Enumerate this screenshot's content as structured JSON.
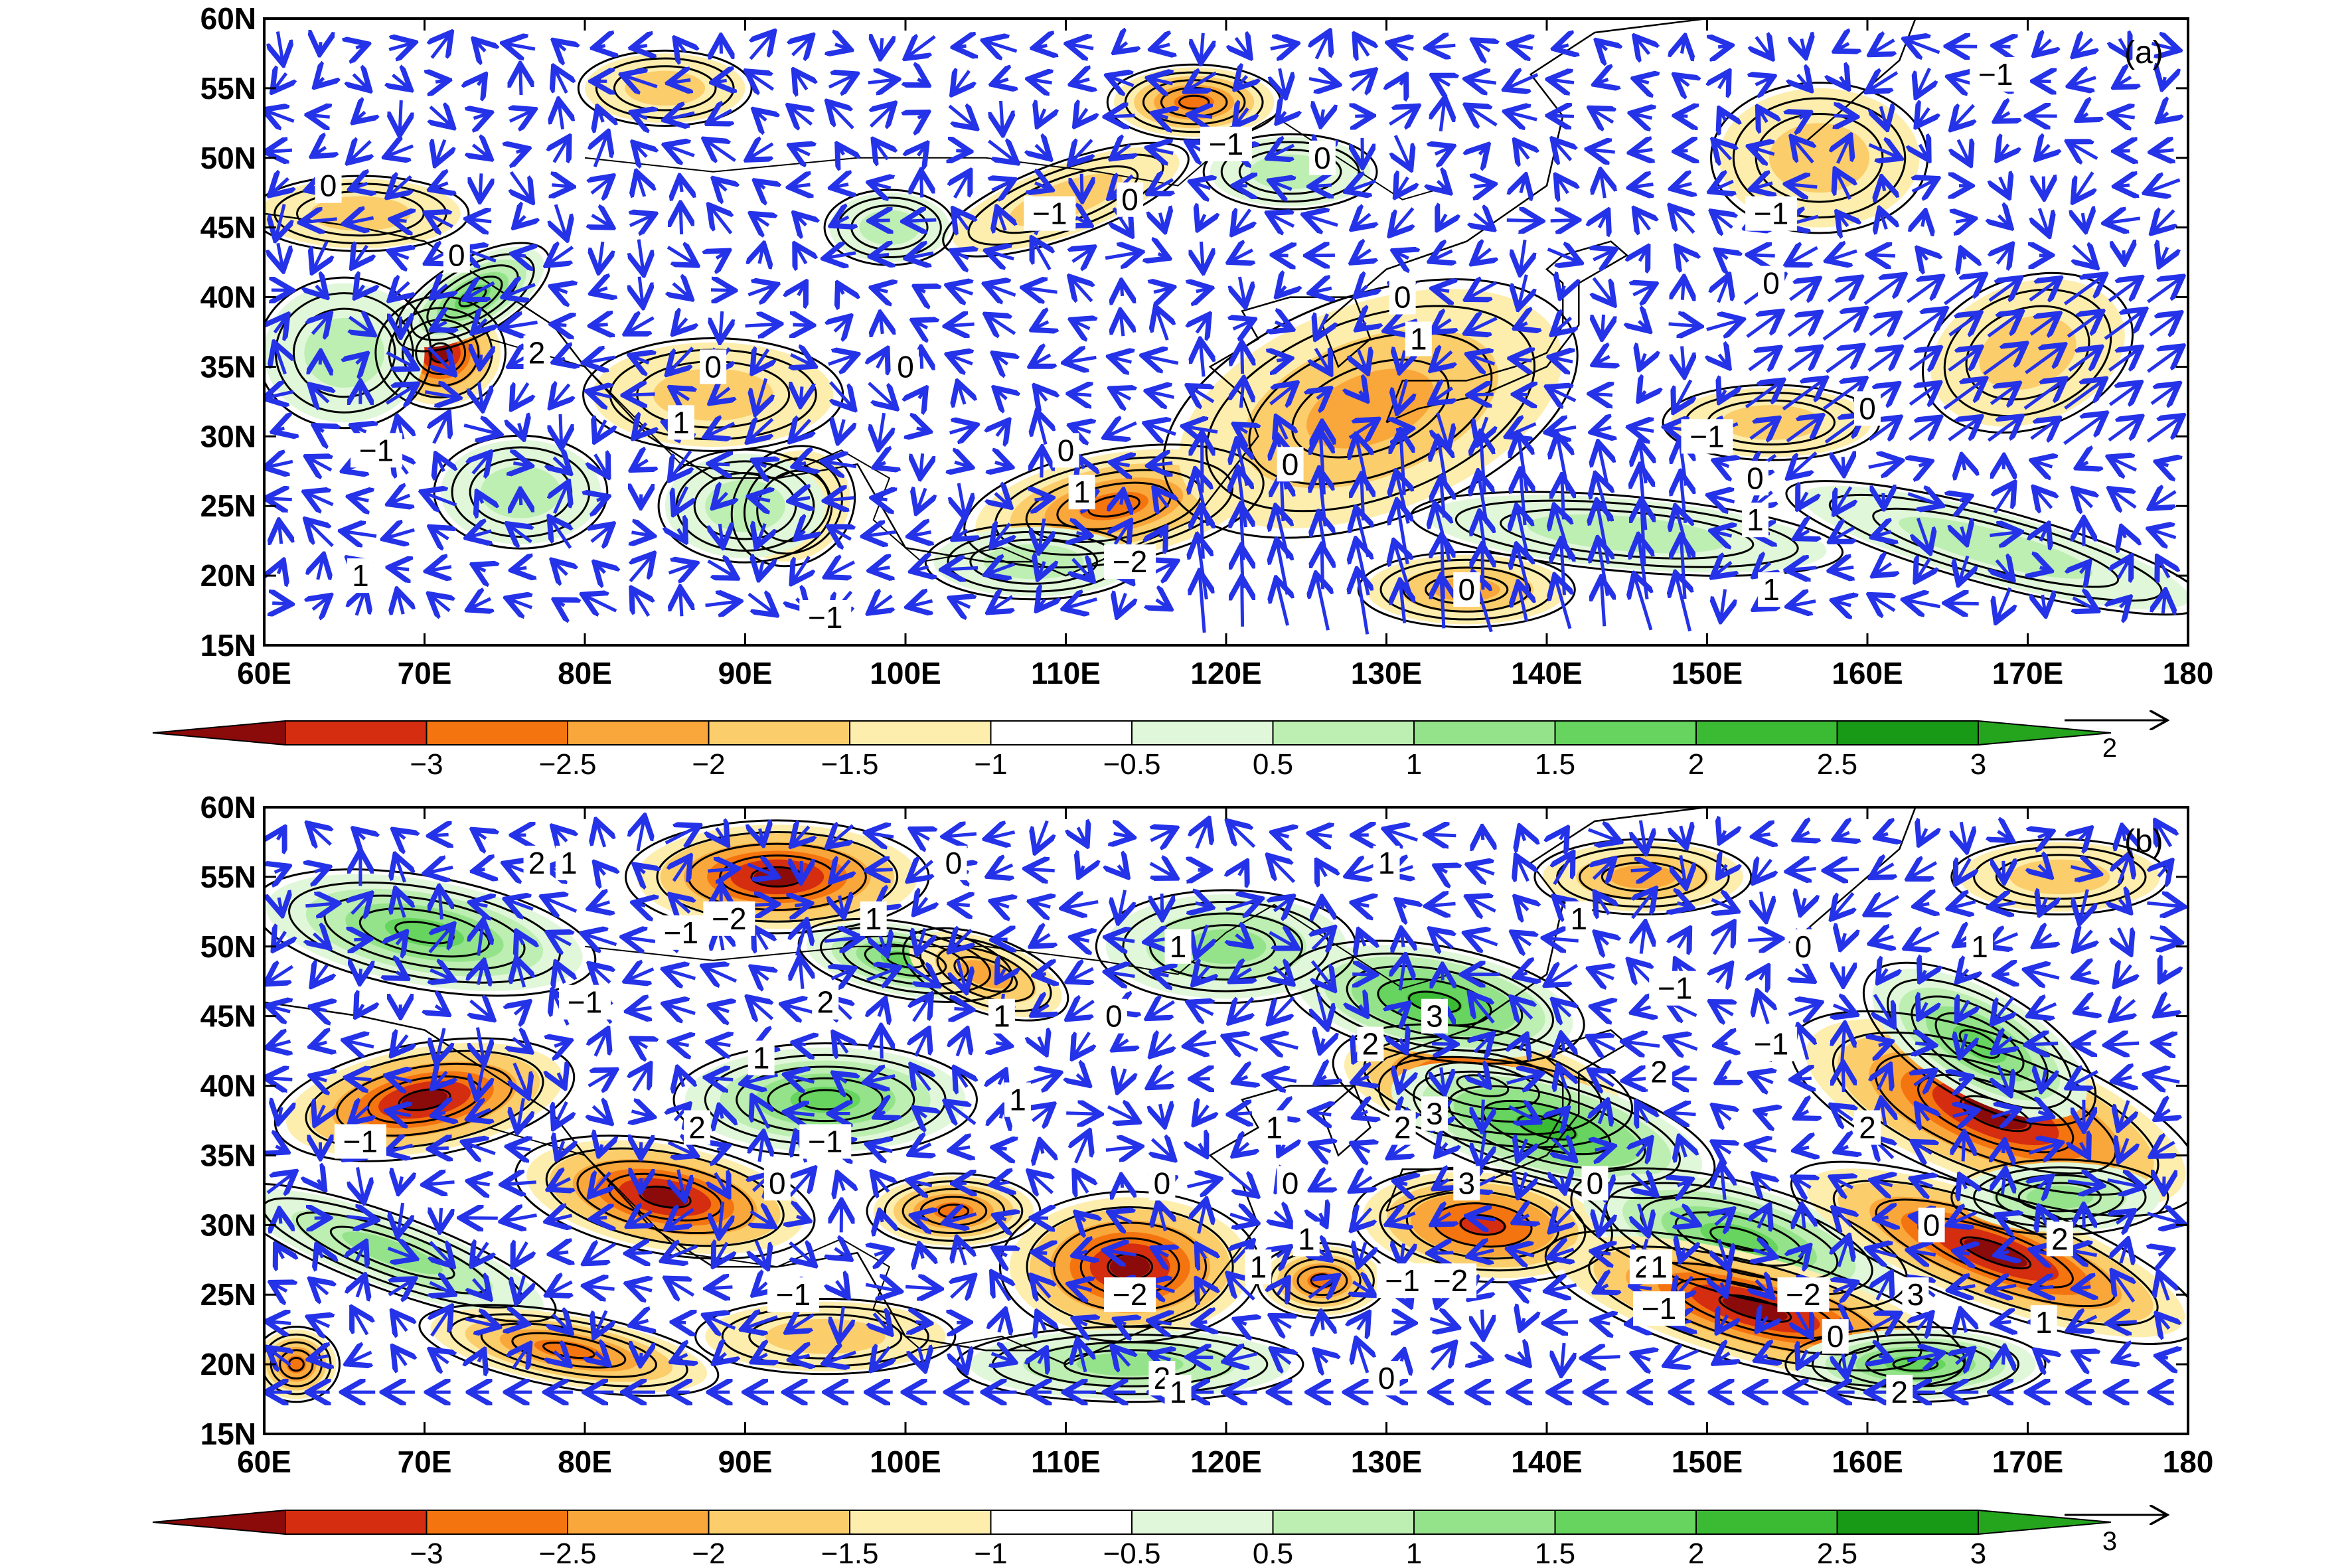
{
  "colorbar": {
    "labels": [
      "−3",
      "−2.5",
      "−2",
      "−1.5",
      "−1",
      "−0.5",
      "0.5",
      "1",
      "1.5",
      "2",
      "2.5",
      "3"
    ],
    "colors": [
      "#8b0a0a",
      "#d42d10",
      "#f4740f",
      "#f9a73a",
      "#fbcd6b",
      "#fdeeae",
      "#ffffff",
      "#e1f7da",
      "#bdeeb2",
      "#94e38a",
      "#66d45e",
      "#3bba34",
      "#189a16",
      "#24a51d"
    ]
  },
  "axes": {
    "x_ticks": [
      "60E",
      "70E",
      "80E",
      "90E",
      "100E",
      "110E",
      "120E",
      "130E",
      "140E",
      "150E",
      "160E",
      "170E",
      "180"
    ],
    "y_ticks": [
      "15N",
      "20N",
      "25N",
      "30N",
      "35N",
      "40N",
      "45N",
      "50N",
      "55N",
      "60N"
    ]
  },
  "panels": [
    {
      "id": "a",
      "label": "(a)",
      "reference_vector_label": "2",
      "contour_labels": [
        {
          "text": "0",
          "lon": 64,
          "lat": 48
        },
        {
          "text": "0",
          "lon": 72,
          "lat": 43
        },
        {
          "text": "2",
          "lon": 77,
          "lat": 36
        },
        {
          "text": "−1",
          "lon": 67,
          "lat": 29
        },
        {
          "text": "1",
          "lon": 66,
          "lat": 20
        },
        {
          "text": "0",
          "lon": 88,
          "lat": 35
        },
        {
          "text": "1",
          "lon": 86,
          "lat": 31
        },
        {
          "text": "−1",
          "lon": 95,
          "lat": 17
        },
        {
          "text": "0",
          "lon": 100,
          "lat": 35
        },
        {
          "text": "−1",
          "lon": 109,
          "lat": 46
        },
        {
          "text": "−1",
          "lon": 120,
          "lat": 51
        },
        {
          "text": "0",
          "lon": 114,
          "lat": 47
        },
        {
          "text": "0",
          "lon": 126,
          "lat": 50
        },
        {
          "text": "0",
          "lon": 131,
          "lat": 40
        },
        {
          "text": "1",
          "lon": 132,
          "lat": 37
        },
        {
          "text": "0",
          "lon": 110,
          "lat": 29
        },
        {
          "text": "1",
          "lon": 111,
          "lat": 26
        },
        {
          "text": "−2",
          "lon": 114,
          "lat": 21
        },
        {
          "text": "0",
          "lon": 124,
          "lat": 28
        },
        {
          "text": "0",
          "lon": 135,
          "lat": 19
        },
        {
          "text": "−1",
          "lon": 154,
          "lat": 46
        },
        {
          "text": "0",
          "lon": 154,
          "lat": 41
        },
        {
          "text": "0",
          "lon": 160,
          "lat": 32
        },
        {
          "text": "−1",
          "lon": 150,
          "lat": 30
        },
        {
          "text": "0",
          "lon": 153,
          "lat": 27
        },
        {
          "text": "1",
          "lon": 153,
          "lat": 24
        },
        {
          "text": "1",
          "lon": 154,
          "lat": 19
        },
        {
          "text": "−1",
          "lon": 168,
          "lat": 56
        }
      ]
    },
    {
      "id": "b",
      "label": "(b)",
      "reference_vector_label": "3",
      "contour_labels": [
        {
          "text": "2",
          "lon": 77,
          "lat": 56
        },
        {
          "text": "1",
          "lon": 79,
          "lat": 56
        },
        {
          "text": "−1",
          "lon": 86,
          "lat": 51
        },
        {
          "text": "−2",
          "lon": 89,
          "lat": 52
        },
        {
          "text": "−1",
          "lon": 80,
          "lat": 46
        },
        {
          "text": "1",
          "lon": 98,
          "lat": 52
        },
        {
          "text": "0",
          "lon": 103,
          "lat": 56
        },
        {
          "text": "2",
          "lon": 95,
          "lat": 46
        },
        {
          "text": "1",
          "lon": 106,
          "lat": 45
        },
        {
          "text": "1",
          "lon": 91,
          "lat": 42
        },
        {
          "text": "0",
          "lon": 113,
          "lat": 45
        },
        {
          "text": "1",
          "lon": 107,
          "lat": 39
        },
        {
          "text": "1",
          "lon": 117,
          "lat": 50
        },
        {
          "text": "1",
          "lon": 130,
          "lat": 56
        },
        {
          "text": "2",
          "lon": 87,
          "lat": 37
        },
        {
          "text": "−1",
          "lon": 95,
          "lat": 36
        },
        {
          "text": "−1",
          "lon": 66,
          "lat": 36
        },
        {
          "text": "0",
          "lon": 92,
          "lat": 33
        },
        {
          "text": "0",
          "lon": 116,
          "lat": 33
        },
        {
          "text": "1",
          "lon": 123,
          "lat": 37
        },
        {
          "text": "0",
          "lon": 124,
          "lat": 33
        },
        {
          "text": "2",
          "lon": 131,
          "lat": 37
        },
        {
          "text": "3",
          "lon": 133,
          "lat": 38
        },
        {
          "text": "2",
          "lon": 129,
          "lat": 43
        },
        {
          "text": "3",
          "lon": 133,
          "lat": 45
        },
        {
          "text": "1",
          "lon": 142,
          "lat": 52
        },
        {
          "text": "−1",
          "lon": 148,
          "lat": 47
        },
        {
          "text": "0",
          "lon": 156,
          "lat": 50
        },
        {
          "text": "−1",
          "lon": 154,
          "lat": 43
        },
        {
          "text": "2",
          "lon": 147,
          "lat": 41
        },
        {
          "text": "0",
          "lon": 143,
          "lat": 33
        },
        {
          "text": "3",
          "lon": 135,
          "lat": 33
        },
        {
          "text": "1",
          "lon": 167,
          "lat": 50
        },
        {
          "text": "2",
          "lon": 160,
          "lat": 37
        },
        {
          "text": "1",
          "lon": 125,
          "lat": 29
        },
        {
          "text": "1",
          "lon": 122,
          "lat": 27
        },
        {
          "text": "−2",
          "lon": 114,
          "lat": 25
        },
        {
          "text": "−1",
          "lon": 93,
          "lat": 25
        },
        {
          "text": "−1",
          "lon": 131,
          "lat": 26
        },
        {
          "text": "−2",
          "lon": 134,
          "lat": 26
        },
        {
          "text": "2",
          "lon": 146,
          "lat": 27
        },
        {
          "text": "1",
          "lon": 147,
          "lat": 27
        },
        {
          "text": "−1",
          "lon": 147,
          "lat": 24
        },
        {
          "text": "0",
          "lon": 130,
          "lat": 19
        },
        {
          "text": "0",
          "lon": 164,
          "lat": 30
        },
        {
          "text": "2",
          "lon": 172,
          "lat": 29
        },
        {
          "text": "−2",
          "lon": 156,
          "lat": 25
        },
        {
          "text": "3",
          "lon": 163,
          "lat": 25
        },
        {
          "text": "0",
          "lon": 158,
          "lat": 22
        },
        {
          "text": "1",
          "lon": 171,
          "lat": 23
        },
        {
          "text": "2",
          "lon": 162,
          "lat": 18
        },
        {
          "text": "2",
          "lon": 116,
          "lat": 19
        },
        {
          "text": "1",
          "lon": 117,
          "lat": 18
        }
      ]
    }
  ]
}
